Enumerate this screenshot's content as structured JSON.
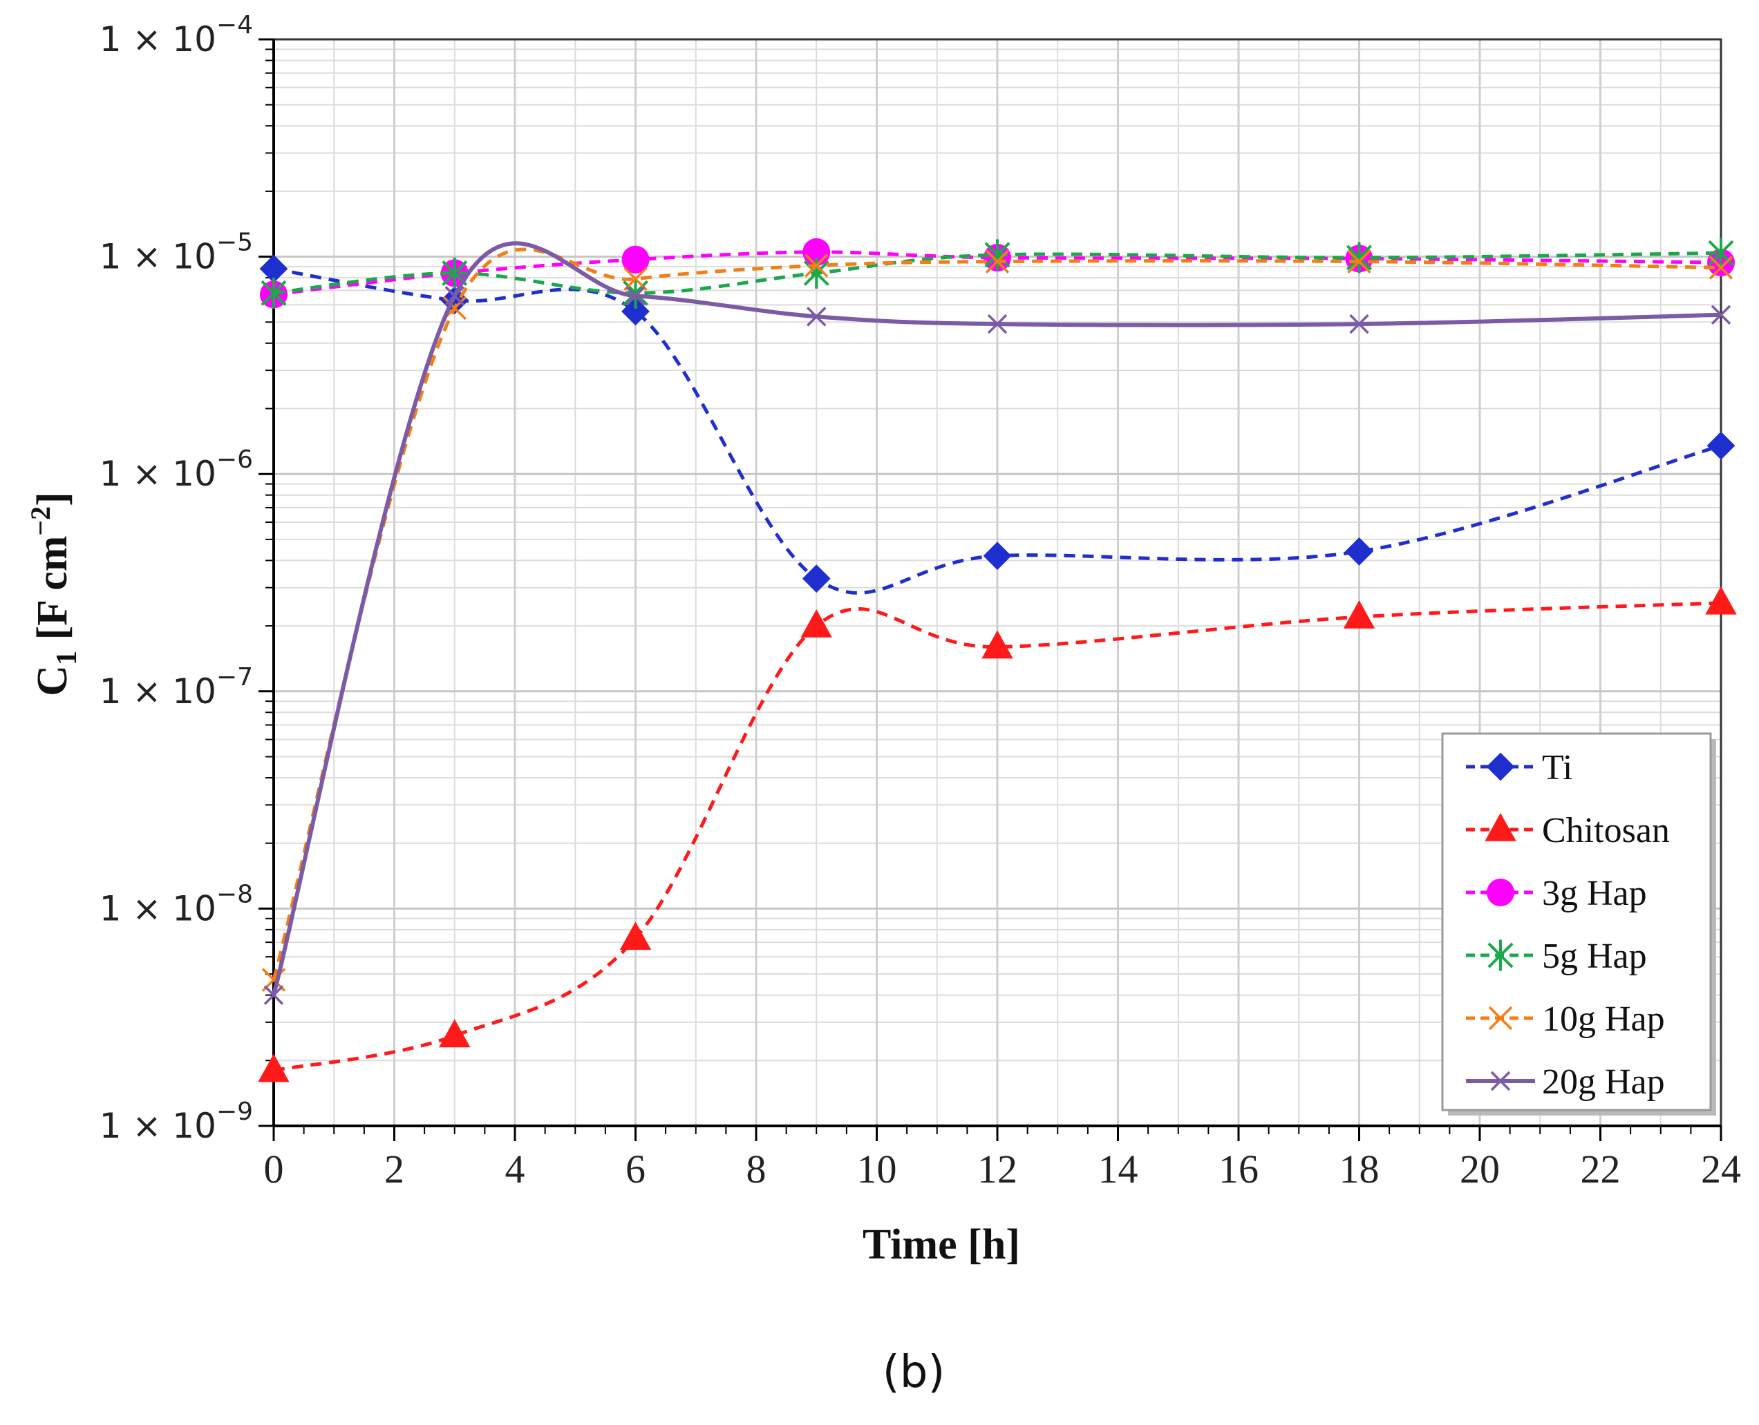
{
  "chart_data": {
    "type": "line",
    "title": "",
    "xlabel": "Time [h]",
    "ylabel": "C1 [F cm−2]",
    "ylabel_base": "C",
    "ylabel_sub": "1",
    "ylabel_unit": " [F cm",
    "ylabel_sup": "−2",
    "ylabel_close": "]",
    "yscale": "log",
    "xlim": [
      0,
      24
    ],
    "ylim": [
      1e-09,
      0.0001
    ],
    "x_ticks": [
      "0",
      "2",
      "4",
      "6",
      "8",
      "10",
      "12",
      "14",
      "16",
      "18",
      "20",
      "22",
      "24"
    ],
    "y_ticks": [
      {
        "base": "1 × 10",
        "exp": "−9"
      },
      {
        "base": "1 × 10",
        "exp": "−8"
      },
      {
        "base": "1 × 10",
        "exp": "−7"
      },
      {
        "base": "1 × 10",
        "exp": "−6"
      },
      {
        "base": "1 × 10",
        "exp": "−5"
      },
      {
        "base": "1 × 10",
        "exp": "−4"
      }
    ],
    "grid": true,
    "legend_position": "bottom-right",
    "x": [
      0,
      3,
      6,
      9,
      12,
      18,
      24
    ],
    "series": [
      {
        "name": "Ti",
        "color": "#1f2fcf",
        "dash": true,
        "marker": "diamond",
        "values": [
          8.8e-06,
          6.3e-06,
          5.6e-06,
          3.3e-07,
          4.2e-07,
          4.4e-07,
          1.35e-06
        ]
      },
      {
        "name": "Chitosan",
        "color": "#ff1a1a",
        "dash": true,
        "marker": "triangle",
        "values": [
          1.8e-09,
          2.6e-09,
          7.3e-09,
          2e-07,
          1.6e-07,
          2.2e-07,
          2.55e-07
        ]
      },
      {
        "name": "3g Hap",
        "color": "#ff00ff",
        "dash": true,
        "marker": "circle",
        "values": [
          6.7e-06,
          8.4e-06,
          9.7e-06,
          1.05e-05,
          9.9e-06,
          9.8e-06,
          9.4e-06
        ]
      },
      {
        "name": "5g Hap",
        "color": "#1aa84a",
        "dash": true,
        "marker": "asterisk",
        "values": [
          6.8e-06,
          8.4e-06,
          6.8e-06,
          8.4e-06,
          1.02e-05,
          9.9e-06,
          1.04e-05
        ]
      },
      {
        "name": "10g Hap",
        "color": "#f37d16",
        "dash": true,
        "marker": "x",
        "values": [
          4.7e-09,
          5.8e-06,
          7.9e-06,
          9.1e-06,
          9.5e-06,
          9.5e-06,
          8.9e-06
        ]
      },
      {
        "name": "20g Hap",
        "color": "#7b5aa6",
        "dash": false,
        "marker": "x",
        "values": [
          4e-09,
          6.6e-06,
          6.6e-06,
          5.3e-06,
          4.9e-06,
          4.9e-06,
          5.4e-06
        ]
      }
    ]
  },
  "caption": "(b)"
}
